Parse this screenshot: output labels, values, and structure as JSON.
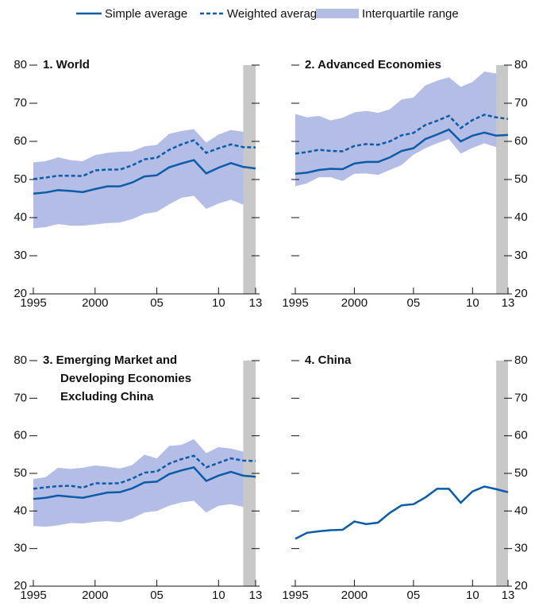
{
  "chart_data": [
    {
      "type": "line",
      "title": [
        "1. World"
      ],
      "x": [
        1995,
        1996,
        1997,
        1998,
        1999,
        2000,
        2001,
        2002,
        2003,
        2004,
        2005,
        2006,
        2007,
        2008,
        2009,
        2010,
        2011,
        2012,
        2013
      ],
      "xlim": [
        1995,
        2013
      ],
      "xticks": [
        1995,
        2000,
        {
          "value": 2005,
          "label": "05"
        },
        {
          "value": 2010,
          "label": "10"
        },
        {
          "value": 2013,
          "label": "13"
        }
      ],
      "ylim": [
        20,
        80
      ],
      "yticks": [
        20,
        30,
        40,
        50,
        60,
        70,
        80
      ],
      "yaxis_side": "left",
      "shaded_x": [
        2012,
        2013
      ],
      "shade_color": "#c8c8c8",
      "series": [
        {
          "name": "Simple average",
          "style": "solid",
          "color": "#0a5ca8",
          "values": [
            46.3,
            46.6,
            47.2,
            47,
            46.7,
            47.5,
            48.2,
            48.2,
            49.2,
            50.8,
            51.1,
            53.2,
            54.2,
            55.1,
            51.6,
            53.1,
            54.3,
            53.3,
            52.9
          ]
        },
        {
          "name": "Weighted average",
          "style": "dashed",
          "color": "#0a5ca8",
          "values": [
            50.1,
            50.5,
            51,
            51,
            50.9,
            52.4,
            52.6,
            52.6,
            53.7,
            55.3,
            55.7,
            57.8,
            59.2,
            60.3,
            57,
            58.2,
            59.2,
            58.5,
            58.4
          ]
        },
        {
          "name": "Interquartile range",
          "style": "band",
          "color": "#b4bde6",
          "low": [
            37.2,
            37.5,
            38.3,
            37.9,
            37.9,
            38.2,
            38.6,
            38.7,
            39.6,
            41,
            41.5,
            43.5,
            45.2,
            45.7,
            42.3,
            43.7,
            44.7,
            43.4,
            44
          ],
          "high": [
            54.5,
            54.8,
            55.8,
            55.1,
            54.8,
            56.4,
            57,
            57.3,
            57.4,
            58.7,
            59.1,
            62,
            62.7,
            63.2,
            59.7,
            61.8,
            63,
            62.5,
            62.3
          ]
        }
      ]
    },
    {
      "type": "line",
      "title": [
        "2. Advanced Economies"
      ],
      "x": [
        1995,
        1996,
        1997,
        1998,
        1999,
        2000,
        2001,
        2002,
        2003,
        2004,
        2005,
        2006,
        2007,
        2008,
        2009,
        2010,
        2011,
        2012,
        2013
      ],
      "xlim": [
        1995,
        2013
      ],
      "xticks": [
        1995,
        2000,
        {
          "value": 2005,
          "label": "05"
        },
        {
          "value": 2010,
          "label": "10"
        },
        {
          "value": 2013,
          "label": "13"
        }
      ],
      "ylim": [
        20,
        80
      ],
      "yticks": [
        20,
        30,
        40,
        50,
        60,
        70,
        80
      ],
      "yaxis_side": "right",
      "shaded_x": [
        2012,
        2013
      ],
      "shade_color": "#c8c8c8",
      "series": [
        {
          "style": "solid",
          "color": "#0a5ca8",
          "values": [
            51.5,
            51.8,
            52.5,
            52.8,
            52.7,
            54.2,
            54.6,
            54.6,
            55.8,
            57.5,
            58.2,
            60.6,
            61.8,
            63.1,
            60,
            61.5,
            62.3,
            61.5,
            61.7
          ]
        },
        {
          "style": "dashed",
          "color": "#0a5ca8",
          "values": [
            56.8,
            57.2,
            57.8,
            57.5,
            57.4,
            58.8,
            59.3,
            59.1,
            60,
            61.6,
            62.2,
            64.3,
            65.4,
            66.7,
            63.5,
            65.6,
            67,
            66.3,
            65.9
          ]
        },
        {
          "style": "band",
          "color": "#b4bde6",
          "low": [
            48.2,
            49,
            50.6,
            50.6,
            49.6,
            51.5,
            51.6,
            51.2,
            52.5,
            53.8,
            56.5,
            58.2,
            59.5,
            60.6,
            56.8,
            58.3,
            59.5,
            58.5,
            58.3
          ],
          "high": [
            67.2,
            66.3,
            66.7,
            65.5,
            66.2,
            67.6,
            68,
            67.5,
            68.4,
            71,
            71.5,
            74.7,
            75.9,
            76.8,
            74.3,
            75.6,
            78.3,
            77.8,
            77.5
          ]
        }
      ]
    },
    {
      "type": "line",
      "title": [
        "3. Emerging Market and",
        "Developing Economies",
        "Excluding China"
      ],
      "x": [
        1995,
        1996,
        1997,
        1998,
        1999,
        2000,
        2001,
        2002,
        2003,
        2004,
        2005,
        2006,
        2007,
        2008,
        2009,
        2010,
        2011,
        2012,
        2013
      ],
      "xlim": [
        1995,
        2013
      ],
      "xticks": [
        1995,
        2000,
        {
          "value": 2005,
          "label": "05"
        },
        {
          "value": 2010,
          "label": "10"
        },
        {
          "value": 2013,
          "label": "13"
        }
      ],
      "ylim": [
        20,
        80
      ],
      "yticks": [
        20,
        30,
        40,
        50,
        60,
        70,
        80
      ],
      "yaxis_side": "left",
      "shaded_x": [
        2012,
        2013
      ],
      "shade_color": "#c8c8c8",
      "series": [
        {
          "style": "solid",
          "color": "#0a5ca8",
          "values": [
            43.2,
            43.5,
            44.1,
            43.8,
            43.5,
            44.2,
            44.9,
            45,
            46,
            47.6,
            47.8,
            49.8,
            50.8,
            51.6,
            48,
            49.4,
            50.4,
            49.4,
            49.1
          ]
        },
        {
          "style": "dashed",
          "color": "#0a5ca8",
          "values": [
            45.9,
            46.3,
            46.6,
            46.7,
            46.2,
            47.4,
            47.3,
            47.4,
            48.6,
            50.2,
            50.5,
            52.6,
            53.8,
            54.7,
            51.6,
            52.8,
            54,
            53.4,
            53.3
          ]
        },
        {
          "style": "band",
          "color": "#b4bde6",
          "low": [
            36,
            35.8,
            36.2,
            36.8,
            36.7,
            37.1,
            37.3,
            37,
            38,
            39.6,
            40,
            41.4,
            42.3,
            42.7,
            39.6,
            41.4,
            41.8,
            41.1,
            40.7
          ],
          "high": [
            48.5,
            49,
            51.5,
            51.2,
            51.5,
            52.1,
            51.8,
            51.3,
            52.2,
            55,
            54,
            57.3,
            57.6,
            59.1,
            55.4,
            57,
            56.6,
            55.8,
            55.1
          ]
        }
      ]
    },
    {
      "type": "line",
      "title": [
        "4. China"
      ],
      "x": [
        1995,
        1996,
        1997,
        1998,
        1999,
        2000,
        2001,
        2002,
        2003,
        2004,
        2005,
        2006,
        2007,
        2008,
        2009,
        2010,
        2011,
        2012,
        2013
      ],
      "xlim": [
        1995,
        2013
      ],
      "xticks": [
        1995,
        2000,
        {
          "value": 2005,
          "label": "05"
        },
        {
          "value": 2010,
          "label": "10"
        },
        {
          "value": 2013,
          "label": "13"
        }
      ],
      "ylim": [
        20,
        80
      ],
      "yticks": [
        20,
        30,
        40,
        50,
        60,
        70,
        80
      ],
      "yaxis_side": "right",
      "shaded_x": [
        2012,
        2013
      ],
      "shade_color": "#c8c8c8",
      "series": [
        {
          "style": "solid",
          "color": "#0a5ca8",
          "values": [
            32.6,
            34.2,
            34.6,
            34.9,
            35,
            37.2,
            36.5,
            36.9,
            39.5,
            41.5,
            41.8,
            43.6,
            45.9,
            45.9,
            42.2,
            45.2,
            46.5,
            45.8,
            45
          ]
        }
      ]
    }
  ]
}
